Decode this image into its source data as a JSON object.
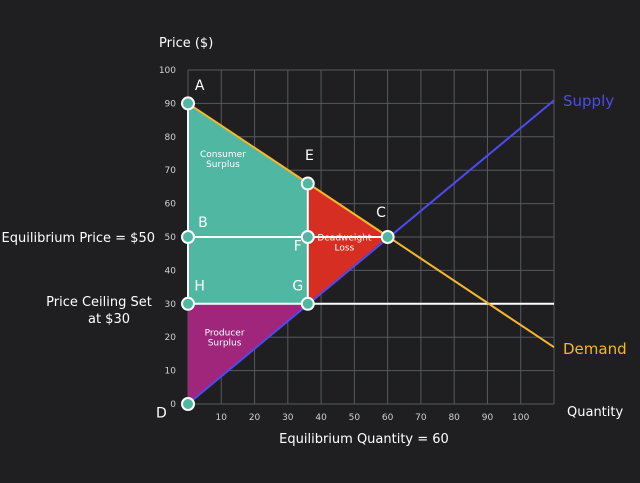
{
  "chart_data": {
    "type": "line",
    "title": "",
    "ylabel": "Price ($)",
    "xlabel": "Quantity",
    "xlim": [
      0,
      110
    ],
    "ylim": [
      0,
      100
    ],
    "x_ticks": [
      0,
      10,
      20,
      30,
      40,
      50,
      60,
      70,
      80,
      90,
      100
    ],
    "y_ticks": [
      0,
      10,
      20,
      30,
      40,
      50,
      60,
      70,
      80,
      90,
      100
    ],
    "grid": true,
    "series": [
      {
        "name": "Supply",
        "color": "#4b4bf0",
        "x": [
          0,
          110
        ],
        "y": [
          0,
          90.9
        ]
      },
      {
        "name": "Demand",
        "color": "#f5b82a",
        "x": [
          0,
          110
        ],
        "y": [
          90,
          17
        ]
      }
    ],
    "price_ceiling": {
      "y": 30,
      "color": "#ffffff"
    },
    "regions": [
      {
        "name": "consumer-surplus",
        "label": "Consumer\nSurplus",
        "color": "#4fb7a2",
        "points": [
          [
            0,
            90
          ],
          [
            36,
            66
          ],
          [
            36,
            30
          ],
          [
            0,
            30
          ]
        ],
        "label_at": [
          10.5,
          74
        ]
      },
      {
        "name": "producer-surplus",
        "label": "Producer\nSurplus",
        "color": "#a0267c",
        "points": [
          [
            0,
            30
          ],
          [
            36,
            30
          ],
          [
            0,
            0
          ]
        ],
        "label_at": [
          11,
          20.5
        ]
      },
      {
        "name": "deadweight-loss",
        "label": "Deadweight\nLoss",
        "color": "#d62e23",
        "points": [
          [
            36,
            66
          ],
          [
            60,
            50
          ],
          [
            36,
            30
          ]
        ],
        "label_at": [
          47,
          49
        ]
      }
    ],
    "segments": [
      {
        "name": "equilibrium-price-segment",
        "from": [
          0,
          50
        ],
        "to": [
          60,
          50
        ],
        "color": "#ffffff"
      },
      {
        "name": "ceiling-quantity-segment",
        "from": [
          36,
          30
        ],
        "to": [
          36,
          66
        ],
        "color": "#ffffff"
      },
      {
        "name": "consumer-left-edge-segment",
        "from": [
          0,
          30
        ],
        "to": [
          0,
          90
        ],
        "color": "#ffffff"
      }
    ],
    "points": [
      {
        "label": "A",
        "x": 0,
        "y": 90,
        "lx": 3.5,
        "ly": 94
      },
      {
        "label": "B",
        "x": 0,
        "y": 50,
        "lx": 4.5,
        "ly": 53
      },
      {
        "label": "C",
        "x": 60,
        "y": 50,
        "lx": 58,
        "ly": 56
      },
      {
        "label": "D",
        "x": 0,
        "y": 0,
        "lx": -8,
        "ly": -4
      },
      {
        "label": "E",
        "x": 36,
        "y": 66,
        "lx": 36.5,
        "ly": 73
      },
      {
        "label": "F",
        "x": 36,
        "y": 50,
        "lx": 33,
        "ly": 46
      },
      {
        "label": "G",
        "x": 36,
        "y": 30,
        "lx": 33,
        "ly": 34
      },
      {
        "label": "H",
        "x": 0,
        "y": 30,
        "lx": 3.5,
        "ly": 34
      }
    ],
    "annotations": {
      "supply_label": "Supply",
      "demand_label": "Demand",
      "equilibrium_price": "Equilibrium Price = $50",
      "price_ceiling": "Price Ceiling Set\nat $30",
      "equilibrium_quantity": "Equilibrium Quantity = 60"
    }
  }
}
